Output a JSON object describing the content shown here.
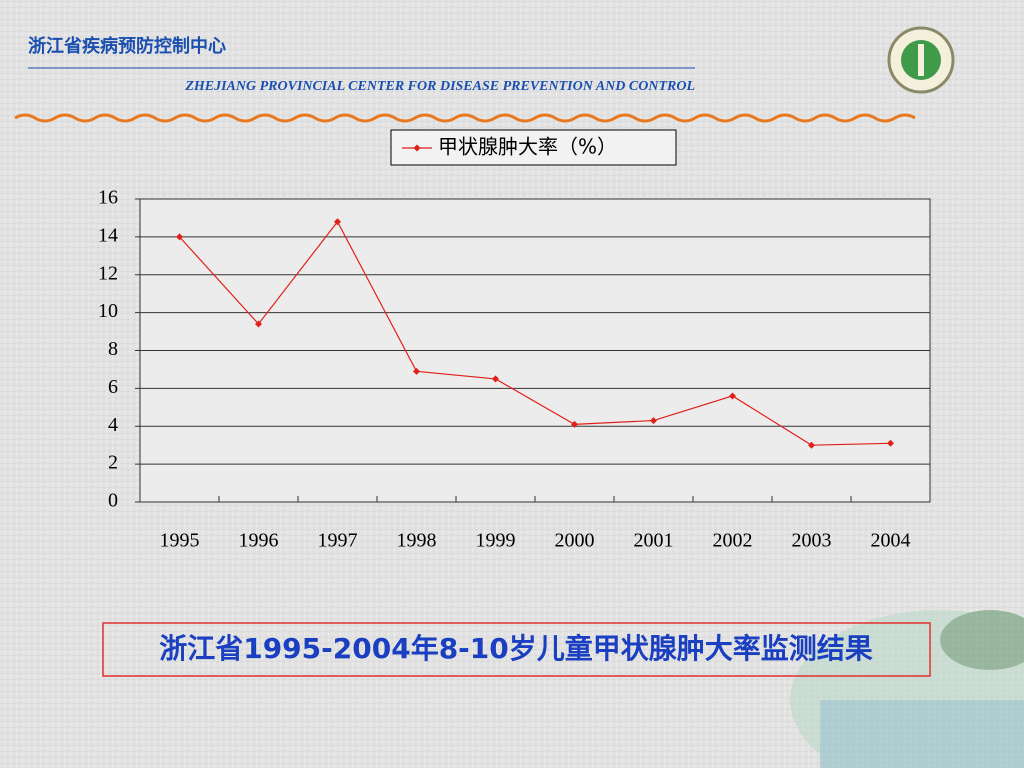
{
  "header": {
    "title": "浙江省疾病预防控制中心",
    "subtitle": "ZHEJIANG PROVINCIAL CENTER FOR DISEASE PREVENTION AND CONTROL"
  },
  "caption": "浙江省1995-2004年8-10岁儿童甲状腺肿大率监测结果",
  "chart_data": {
    "type": "line",
    "categories": [
      "1995",
      "1996",
      "1997",
      "1998",
      "1999",
      "2000",
      "2001",
      "2002",
      "2003",
      "2004"
    ],
    "series": [
      {
        "name": "甲状腺肿大率（%）",
        "color": "#e0201a",
        "values": [
          14.0,
          9.4,
          14.8,
          6.9,
          6.5,
          4.1,
          4.3,
          5.6,
          3.0,
          3.1
        ]
      }
    ],
    "ylim": [
      0,
      16
    ],
    "yticks": [
      0,
      2,
      4,
      6,
      8,
      10,
      12,
      14,
      16
    ],
    "grid": true,
    "legend": "top"
  }
}
